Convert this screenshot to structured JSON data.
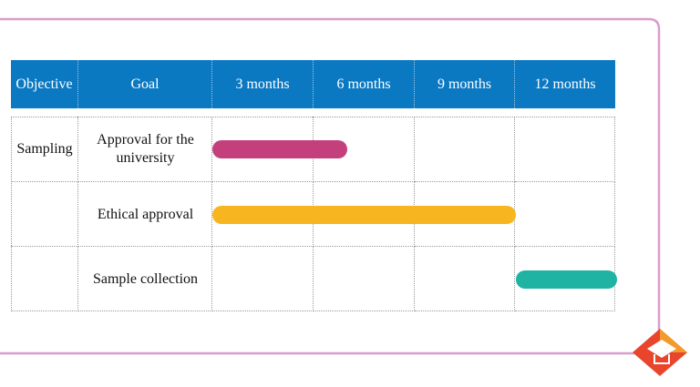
{
  "table": {
    "header": [
      "Objective",
      "Goal",
      "3 months",
      "6 months",
      "9 months",
      "12 months"
    ],
    "rows": [
      {
        "objective": "Sampling",
        "goal": "Approval for the university",
        "start": 0,
        "end": 4,
        "color": "#c4407c"
      },
      {
        "goal": "Ethical approval",
        "start": 0,
        "end": 9,
        "color": "#f7b51f"
      },
      {
        "goal": "Sample collection",
        "start": 9,
        "end": 12,
        "color": "#1fb3a4"
      }
    ]
  }
}
